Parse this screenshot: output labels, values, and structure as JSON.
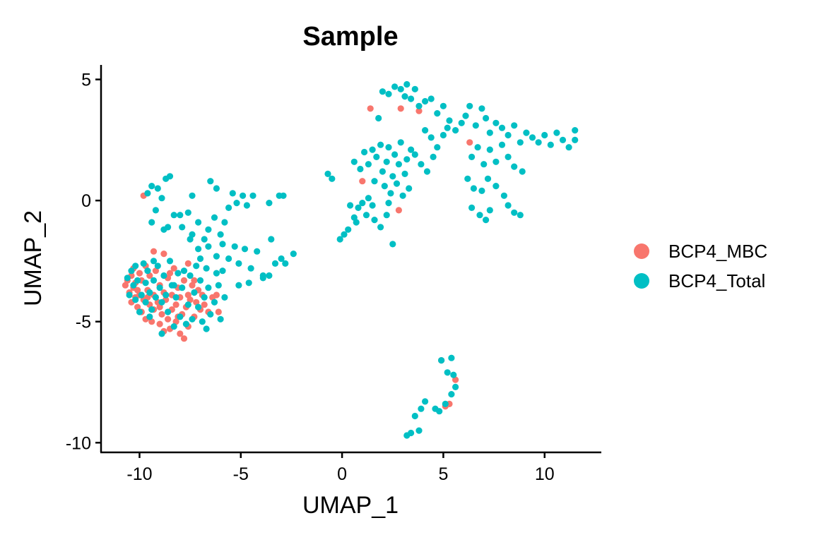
{
  "chart_data": {
    "type": "scatter",
    "title": "Sample",
    "xlabel": "UMAP_1",
    "ylabel": "UMAP_2",
    "xlim": [
      -11.9,
      12.8
    ],
    "ylim": [
      -10.4,
      5.6
    ],
    "x_ticks": [
      -10,
      -5,
      0,
      5,
      10
    ],
    "y_ticks": [
      -10,
      -5,
      0,
      5
    ],
    "x_tick_labels": [
      "-10",
      "-5",
      "0",
      "5",
      "10"
    ],
    "y_tick_labels": [
      "-10",
      "-5",
      "0",
      "5"
    ],
    "grid": false,
    "legend_position": "right",
    "series": [
      {
        "name": "BCP4_MBC",
        "color": "#F8766D",
        "points": [
          [
            -10.7,
            -3.5
          ],
          [
            -10.6,
            -3.3
          ],
          [
            -10.5,
            -3.8
          ],
          [
            -10.4,
            -3.1
          ],
          [
            -10.4,
            -4.2
          ],
          [
            -10.3,
            -3.6
          ],
          [
            -10.3,
            -2.8
          ],
          [
            -10.2,
            -4.0
          ],
          [
            -10.2,
            -3.4
          ],
          [
            -10.1,
            -4.4
          ],
          [
            -10.0,
            -3.0
          ],
          [
            -10.0,
            -3.9
          ],
          [
            -9.9,
            -4.6
          ],
          [
            -9.9,
            -3.3
          ],
          [
            -9.8,
            -4.1
          ],
          [
            -9.7,
            -2.7
          ],
          [
            -9.7,
            -4.9
          ],
          [
            -9.6,
            -3.7
          ],
          [
            -9.5,
            -4.3
          ],
          [
            -9.5,
            -3.1
          ],
          [
            -9.4,
            -5.0
          ],
          [
            -9.3,
            -3.9
          ],
          [
            -9.3,
            -4.5
          ],
          [
            -9.2,
            -2.9
          ],
          [
            -9.1,
            -4.2
          ],
          [
            -9.0,
            -5.1
          ],
          [
            -9.0,
            -3.5
          ],
          [
            -8.9,
            -4.7
          ],
          [
            -8.8,
            -3.8
          ],
          [
            -8.8,
            -5.4
          ],
          [
            -8.7,
            -4.1
          ],
          [
            -8.6,
            -3.2
          ],
          [
            -8.6,
            -4.9
          ],
          [
            -8.5,
            -5.3
          ],
          [
            -8.4,
            -3.9
          ],
          [
            -8.4,
            -4.5
          ],
          [
            -8.3,
            -2.8
          ],
          [
            -8.2,
            -5.0
          ],
          [
            -8.2,
            -4.3
          ],
          [
            -8.1,
            -3.6
          ],
          [
            -8.0,
            -5.5
          ],
          [
            -8.0,
            -4.0
          ],
          [
            -7.9,
            -4.7
          ],
          [
            -7.8,
            -3.3
          ],
          [
            -7.8,
            -5.7
          ],
          [
            -7.7,
            -4.4
          ],
          [
            -7.6,
            -3.9
          ],
          [
            -7.6,
            -5.2
          ],
          [
            -7.5,
            -4.1
          ],
          [
            -7.4,
            -3.5
          ],
          [
            -7.3,
            -4.8
          ],
          [
            -7.2,
            -4.2
          ],
          [
            -7.1,
            -3.7
          ],
          [
            -7.0,
            -4.5
          ],
          [
            -6.9,
            -3.9
          ],
          [
            -6.8,
            -4.3
          ],
          [
            -6.6,
            -4.6
          ],
          [
            -6.4,
            -4.0
          ],
          [
            -6.2,
            -3.9
          ],
          [
            -6.1,
            -4.6
          ],
          [
            -8.8,
            -2.2
          ],
          [
            -9.3,
            -2.1
          ],
          [
            -7.6,
            -2.6
          ],
          [
            -9.8,
            0.2
          ],
          [
            -8.5,
            -3.0
          ],
          [
            -9.6,
            -4.0
          ],
          [
            -8.1,
            -4.8
          ],
          [
            -7.3,
            -3.3
          ],
          [
            -10.1,
            -3.7
          ],
          [
            -9.0,
            -4.4
          ],
          [
            1.4,
            3.8
          ],
          [
            2.9,
            3.8
          ],
          [
            3.8,
            3.7
          ],
          [
            6.3,
            2.4
          ],
          [
            1.0,
            0.8
          ],
          [
            2.8,
            -0.4
          ],
          [
            4.9,
            -6.6
          ],
          [
            5.6,
            -7.4
          ],
          [
            5.1,
            -8.5
          ],
          [
            5.3,
            -8.4
          ]
        ]
      },
      {
        "name": "BCP4_Total",
        "color": "#00BFC4",
        "points": [
          [
            -10.6,
            -3.2
          ],
          [
            -10.5,
            -3.9
          ],
          [
            -10.4,
            -2.9
          ],
          [
            -10.3,
            -3.5
          ],
          [
            -10.2,
            -4.1
          ],
          [
            -10.2,
            -2.7
          ],
          [
            -10.1,
            -3.3
          ],
          [
            -10.0,
            -4.6
          ],
          [
            -9.9,
            -3.9
          ],
          [
            -9.8,
            -2.6
          ],
          [
            -9.7,
            -3.4
          ],
          [
            -9.7,
            -4.2
          ],
          [
            -9.6,
            -2.9
          ],
          [
            -9.5,
            -3.8
          ],
          [
            -9.4,
            -4.5
          ],
          [
            -9.3,
            -2.5
          ],
          [
            -9.3,
            -3.3
          ],
          [
            -9.2,
            -4.0
          ],
          [
            -9.1,
            -2.7
          ],
          [
            -9.0,
            -3.6
          ],
          [
            -8.9,
            -4.2
          ],
          [
            -8.9,
            -5.5
          ],
          [
            -8.8,
            -3.1
          ],
          [
            -8.7,
            -3.9
          ],
          [
            -8.6,
            -4.6
          ],
          [
            -8.5,
            -2.5
          ],
          [
            -8.4,
            -3.5
          ],
          [
            -8.3,
            -5.2
          ],
          [
            -8.2,
            -4.0
          ],
          [
            -8.1,
            -3.0
          ],
          [
            -8.0,
            -4.8
          ],
          [
            -7.9,
            -3.6
          ],
          [
            -7.8,
            -2.9
          ],
          [
            -7.7,
            -5.1
          ],
          [
            -7.6,
            -4.3
          ],
          [
            -7.5,
            -3.1
          ],
          [
            -7.4,
            -4.9
          ],
          [
            -7.3,
            -3.8
          ],
          [
            -7.2,
            -2.7
          ],
          [
            -7.1,
            -4.4
          ],
          [
            -7.0,
            -3.3
          ],
          [
            -6.9,
            -5.0
          ],
          [
            -6.8,
            -4.0
          ],
          [
            -6.7,
            -5.3
          ],
          [
            -6.6,
            -3.6
          ],
          [
            -6.5,
            -4.7
          ],
          [
            -6.3,
            -4.2
          ],
          [
            -6.1,
            -3.5
          ],
          [
            -6.0,
            -4.9
          ],
          [
            -5.8,
            -4.0
          ],
          [
            -9.6,
            0.3
          ],
          [
            -9.4,
            0.6
          ],
          [
            -9.1,
            0.5
          ],
          [
            -8.7,
            0.9
          ],
          [
            -8.5,
            1.0
          ],
          [
            -8.9,
            0.1
          ],
          [
            -9.2,
            -0.4
          ],
          [
            -9.4,
            -0.9
          ],
          [
            -8.8,
            -1.2
          ],
          [
            -8.3,
            -0.6
          ],
          [
            -7.9,
            -1.1
          ],
          [
            -7.6,
            -0.5
          ],
          [
            -7.4,
            -1.4
          ],
          [
            -7.1,
            -0.9
          ],
          [
            -6.8,
            -1.6
          ],
          [
            -6.6,
            -1.2
          ],
          [
            -6.3,
            -0.7
          ],
          [
            -6.0,
            -1.4
          ],
          [
            -5.8,
            -0.9
          ],
          [
            -5.6,
            -0.3
          ],
          [
            -5.4,
            0.3
          ],
          [
            -5.2,
            -0.1
          ],
          [
            -4.9,
            0.2
          ],
          [
            -4.7,
            -0.2
          ],
          [
            -4.4,
            0.2
          ],
          [
            -3.6,
            -0.1
          ],
          [
            -3.1,
            0.2
          ],
          [
            -2.9,
            0.2
          ],
          [
            -6.5,
            0.8
          ],
          [
            -6.2,
            0.5
          ],
          [
            -7.1,
            -2.0
          ],
          [
            -6.6,
            -1.9
          ],
          [
            -6.2,
            -2.3
          ],
          [
            -5.9,
            -1.8
          ],
          [
            -5.6,
            -2.4
          ],
          [
            -5.3,
            -1.9
          ],
          [
            -5.1,
            -2.6
          ],
          [
            -4.8,
            -2.0
          ],
          [
            -4.5,
            -2.8
          ],
          [
            -4.2,
            -2.1
          ],
          [
            -3.9,
            -3.2
          ],
          [
            -3.6,
            -3.1
          ],
          [
            -3.3,
            -2.6
          ],
          [
            -3.0,
            -2.4
          ],
          [
            -2.8,
            -2.6
          ],
          [
            -2.4,
            -2.2
          ],
          [
            -5.1,
            -3.5
          ],
          [
            -4.6,
            -3.4
          ],
          [
            -3.9,
            -3.1
          ],
          [
            -3.5,
            -1.6
          ],
          [
            -7.5,
            -1.6
          ],
          [
            -7.0,
            -2.4
          ],
          [
            -6.7,
            -2.8
          ],
          [
            -6.2,
            -3.0
          ],
          [
            -8.6,
            -1.1
          ],
          [
            -8.0,
            -0.6
          ],
          [
            -7.4,
            0.2
          ],
          [
            -5.9,
            -2.9
          ],
          [
            -8.3,
            -3.5
          ],
          [
            -9.5,
            -4.8
          ],
          [
            -0.7,
            1.1
          ],
          [
            -0.5,
            0.9
          ],
          [
            -0.1,
            -1.6
          ],
          [
            0.1,
            -1.4
          ],
          [
            0.3,
            -1.2
          ],
          [
            0.6,
            -0.7
          ],
          [
            0.8,
            -0.3
          ],
          [
            1.0,
            -0.1
          ],
          [
            1.2,
            -0.6
          ],
          [
            1.3,
            0.1
          ],
          [
            0.6,
            1.6
          ],
          [
            0.9,
            1.3
          ],
          [
            1.1,
            2.0
          ],
          [
            1.3,
            1.5
          ],
          [
            1.5,
            2.1
          ],
          [
            1.6,
            0.8
          ],
          [
            1.7,
            1.8
          ],
          [
            1.9,
            2.3
          ],
          [
            2.0,
            1.2
          ],
          [
            2.1,
            0.6
          ],
          [
            2.2,
            1.6
          ],
          [
            2.3,
            2.2
          ],
          [
            2.4,
            0.3
          ],
          [
            2.5,
            1.0
          ],
          [
            2.6,
            1.9
          ],
          [
            2.7,
            0.7
          ],
          [
            2.8,
            1.5
          ],
          [
            2.9,
            2.4
          ],
          [
            3.0,
            0.2
          ],
          [
            3.1,
            1.1
          ],
          [
            3.2,
            1.7
          ],
          [
            3.3,
            0.5
          ],
          [
            3.4,
            2.1
          ],
          [
            1.8,
            3.4
          ],
          [
            2.0,
            4.5
          ],
          [
            2.3,
            4.4
          ],
          [
            2.6,
            4.7
          ],
          [
            2.9,
            4.6
          ],
          [
            3.1,
            4.3
          ],
          [
            3.2,
            4.8
          ],
          [
            3.4,
            4.2
          ],
          [
            3.6,
            4.6
          ],
          [
            3.8,
            3.9
          ],
          [
            4.1,
            4.1
          ],
          [
            4.4,
            4.2
          ],
          [
            4.7,
            3.6
          ],
          [
            5.0,
            3.9
          ],
          [
            5.3,
            3.3
          ],
          [
            5.6,
            2.9
          ],
          [
            5.9,
            3.2
          ],
          [
            6.1,
            3.5
          ],
          [
            4.1,
            2.9
          ],
          [
            4.4,
            2.6
          ],
          [
            4.7,
            2.2
          ],
          [
            5.0,
            2.7
          ],
          [
            5.2,
            3.0
          ],
          [
            3.6,
            1.9
          ],
          [
            3.9,
            1.5
          ],
          [
            4.2,
            1.2
          ],
          [
            4.5,
            1.8
          ],
          [
            6.3,
            3.9
          ],
          [
            6.6,
            3.1
          ],
          [
            6.9,
            3.8
          ],
          [
            7.1,
            3.4
          ],
          [
            7.3,
            2.8
          ],
          [
            7.6,
            3.2
          ],
          [
            7.9,
            3.0
          ],
          [
            8.2,
            2.7
          ],
          [
            8.5,
            3.1
          ],
          [
            8.8,
            2.4
          ],
          [
            9.1,
            2.8
          ],
          [
            9.4,
            2.6
          ],
          [
            9.7,
            2.4
          ],
          [
            10.0,
            2.7
          ],
          [
            10.3,
            2.3
          ],
          [
            10.6,
            2.8
          ],
          [
            10.9,
            2.5
          ],
          [
            11.2,
            2.2
          ],
          [
            11.5,
            2.9
          ],
          [
            11.5,
            2.5
          ],
          [
            6.4,
            1.8
          ],
          [
            6.7,
            2.2
          ],
          [
            7.0,
            1.5
          ],
          [
            7.3,
            2.1
          ],
          [
            7.6,
            1.6
          ],
          [
            7.9,
            2.3
          ],
          [
            8.2,
            1.8
          ],
          [
            8.5,
            1.4
          ],
          [
            8.9,
            1.2
          ],
          [
            6.2,
            0.9
          ],
          [
            6.5,
            0.5
          ],
          [
            6.9,
            0.4
          ],
          [
            7.2,
            0.9
          ],
          [
            7.6,
            0.6
          ],
          [
            8.0,
            0.2
          ],
          [
            8.2,
            -0.2
          ],
          [
            8.5,
            -0.5
          ],
          [
            8.8,
            -0.6
          ],
          [
            6.4,
            -0.3
          ],
          [
            6.8,
            -0.6
          ],
          [
            7.1,
            -0.8
          ],
          [
            7.3,
            -0.4
          ],
          [
            1.6,
            -0.8
          ],
          [
            1.9,
            -1.1
          ],
          [
            2.2,
            -0.6
          ],
          [
            2.5,
            -1.8
          ],
          [
            0.4,
            -0.2
          ],
          [
            0.7,
            -0.9
          ],
          [
            1.5,
            -0.2
          ],
          [
            2.3,
            -0.1
          ],
          [
            4.9,
            -6.6
          ],
          [
            5.4,
            -6.5
          ],
          [
            5.2,
            -7.1
          ],
          [
            5.6,
            -7.7
          ],
          [
            5.4,
            -8.0
          ],
          [
            5.1,
            -8.4
          ],
          [
            4.8,
            -8.7
          ],
          [
            4.6,
            -8.6
          ],
          [
            3.9,
            -8.6
          ],
          [
            3.6,
            -8.9
          ],
          [
            3.8,
            -9.5
          ],
          [
            3.4,
            -9.6
          ],
          [
            3.2,
            -9.7
          ],
          [
            4.1,
            -8.3
          ],
          [
            5.5,
            -7.2
          ]
        ]
      }
    ]
  }
}
